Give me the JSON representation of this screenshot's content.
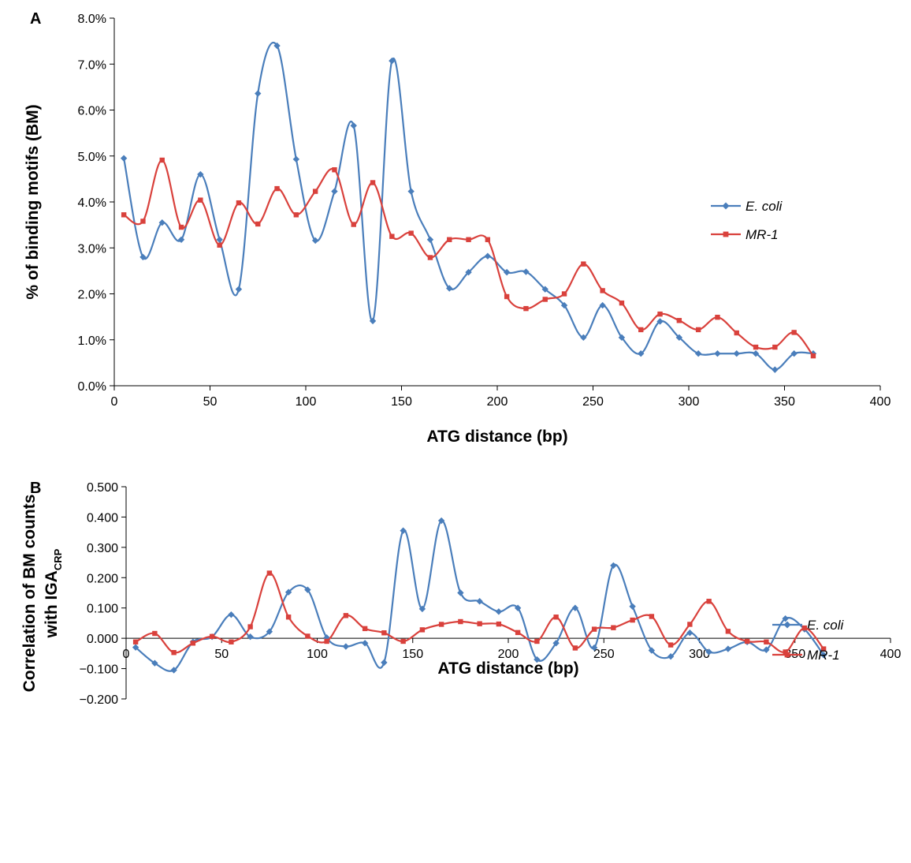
{
  "colors": {
    "ecoli": "#4A7EBB",
    "mr1": "#D9413C",
    "axis": "#000000"
  },
  "chart_data": [
    {
      "type": "line",
      "panel_label": "A",
      "xlabel": "ATG distance (bp)",
      "ylabel": "% of binding motifs (BM)",
      "xlim": [
        0,
        400
      ],
      "ylim": [
        0,
        8
      ],
      "x_ticks": [
        0,
        50,
        100,
        150,
        200,
        250,
        300,
        350,
        400
      ],
      "x_tick_labels": [
        "0",
        "50",
        "100",
        "150",
        "200",
        "250",
        "300",
        "350",
        "400"
      ],
      "y_ticks": [
        0,
        1,
        2,
        3,
        4,
        5,
        6,
        7,
        8
      ],
      "y_tick_labels": [
        "0.0%",
        "1.0%",
        "2.0%",
        "3.0%",
        "4.0%",
        "5.0%",
        "6.0%",
        "7.0%",
        "8.0%"
      ],
      "legend_position": "right",
      "x": [
        5,
        15,
        25,
        35,
        45,
        55,
        65,
        75,
        85,
        95,
        105,
        115,
        125,
        135,
        145,
        155,
        165,
        175,
        185,
        195,
        205,
        215,
        225,
        235,
        245,
        255,
        265,
        275,
        285,
        295,
        305,
        315,
        325,
        335,
        345,
        355,
        365
      ],
      "series": [
        {
          "name": "E. coli",
          "color_key": "ecoli",
          "marker": "diamond",
          "values": [
            4.95,
            2.8,
            3.55,
            3.18,
            4.6,
            3.18,
            2.1,
            6.36,
            7.4,
            4.93,
            3.16,
            4.23,
            5.66,
            1.41,
            7.07,
            4.23,
            3.18,
            2.12,
            2.47,
            2.82,
            2.47,
            2.48,
            2.1,
            1.75,
            1.05,
            1.75,
            1.05,
            0.7,
            1.4,
            1.05,
            0.7,
            0.7,
            0.7,
            0.7,
            0.35,
            0.7,
            0.7
          ]
        },
        {
          "name": "MR-1",
          "color_key": "mr1",
          "marker": "square",
          "values": [
            3.72,
            3.58,
            4.91,
            3.45,
            4.04,
            3.06,
            3.98,
            3.52,
            4.29,
            3.72,
            4.23,
            4.7,
            3.51,
            4.42,
            3.25,
            3.32,
            2.79,
            3.18,
            3.18,
            3.18,
            1.94,
            1.68,
            1.88,
            2.0,
            2.65,
            2.07,
            1.8,
            1.22,
            1.56,
            1.42,
            1.22,
            1.49,
            1.15,
            0.84,
            0.84,
            1.16,
            0.65
          ]
        }
      ]
    },
    {
      "type": "line",
      "panel_label": "B",
      "xlabel": "ATG distance (bp)",
      "ylabel_line1": "Correlation of BM counts",
      "ylabel_line2": "with IGA",
      "ylabel_sub": "CRP",
      "xlim": [
        0,
        400
      ],
      "ylim": [
        -0.2,
        0.5
      ],
      "x_ticks": [
        0,
        50,
        100,
        150,
        200,
        250,
        300,
        350,
        400
      ],
      "x_tick_labels": [
        "0",
        "50",
        "100",
        "150",
        "200",
        "250",
        "300",
        "350",
        "400"
      ],
      "y_ticks": [
        -0.2,
        -0.1,
        0,
        0.1,
        0.2,
        0.3,
        0.4,
        0.5
      ],
      "y_tick_labels": [
        "−0.200",
        "−0.100",
        "0.000",
        "0.100",
        "0.200",
        "0.300",
        "0.400",
        "0.500"
      ],
      "legend_position": "right",
      "x": [
        5,
        15,
        25,
        35,
        45,
        55,
        65,
        75,
        85,
        95,
        105,
        115,
        125,
        135,
        145,
        155,
        165,
        175,
        185,
        195,
        205,
        215,
        225,
        235,
        245,
        255,
        265,
        275,
        285,
        295,
        305,
        315,
        325,
        335,
        345,
        355,
        365
      ],
      "series": [
        {
          "name": "E. coli",
          "color_key": "ecoli",
          "marker": "diamond",
          "values": [
            -0.03,
            -0.082,
            -0.105,
            -0.012,
            0.005,
            0.078,
            0.005,
            0.022,
            0.152,
            0.16,
            0.002,
            -0.027,
            -0.016,
            -0.08,
            0.355,
            0.097,
            0.388,
            0.15,
            0.122,
            0.088,
            0.1,
            -0.07,
            -0.016,
            0.1,
            -0.031,
            0.24,
            0.105,
            -0.04,
            -0.06,
            0.018,
            -0.045,
            -0.035,
            -0.012,
            -0.038,
            0.065,
            0.03,
            -0.055
          ]
        },
        {
          "name": "MR-1",
          "color_key": "mr1",
          "marker": "square",
          "values": [
            -0.012,
            0.016,
            -0.047,
            -0.016,
            0.006,
            -0.012,
            0.038,
            0.215,
            0.07,
            0.007,
            -0.01,
            0.075,
            0.032,
            0.018,
            -0.01,
            0.028,
            0.046,
            0.055,
            0.048,
            0.047,
            0.019,
            -0.01,
            0.07,
            -0.032,
            0.03,
            0.035,
            0.06,
            0.072,
            -0.022,
            0.046,
            0.122,
            0.023,
            -0.01,
            -0.012,
            -0.045,
            0.034,
            -0.035
          ]
        }
      ]
    }
  ]
}
